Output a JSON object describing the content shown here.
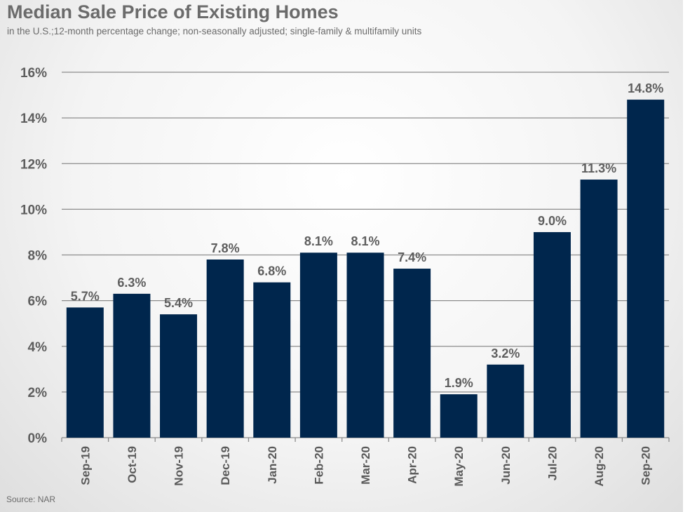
{
  "header": {
    "title": "Median Sale Price of Existing Homes",
    "subtitle": "in the U.S.;12-month percentage change; non-seasonally adjusted; single-family & multifamily units"
  },
  "footer": {
    "source": "Source: NAR"
  },
  "colors": {
    "bar": "#00264d",
    "grid": "#8c8c8c",
    "text": "#5e5e5e"
  },
  "chart_data": {
    "type": "bar",
    "title": "Median Sale Price of Existing Homes",
    "xlabel": "",
    "ylabel": "",
    "ylim": [
      0,
      16
    ],
    "yticks": [
      0,
      2,
      4,
      6,
      8,
      10,
      12,
      14,
      16
    ],
    "ytick_labels": [
      "0%",
      "2%",
      "4%",
      "6%",
      "8%",
      "10%",
      "12%",
      "14%",
      "16%"
    ],
    "grid": true,
    "categories": [
      "Sep-19",
      "Oct-19",
      "Nov-19",
      "Dec-19",
      "Jan-20",
      "Feb-20",
      "Mar-20",
      "Apr-20",
      "May-20",
      "Jun-20",
      "Jul-20",
      "Aug-20",
      "Sep-20"
    ],
    "values": [
      5.7,
      6.3,
      5.4,
      7.8,
      6.8,
      8.1,
      8.1,
      7.4,
      1.9,
      3.2,
      9.0,
      11.3,
      14.8
    ],
    "data_labels": [
      "5.7%",
      "6.3%",
      "5.4%",
      "7.8%",
      "6.8%",
      "8.1%",
      "8.1%",
      "7.4%",
      "1.9%",
      "3.2%",
      "9.0%",
      "11.3%",
      "14.8%"
    ]
  }
}
